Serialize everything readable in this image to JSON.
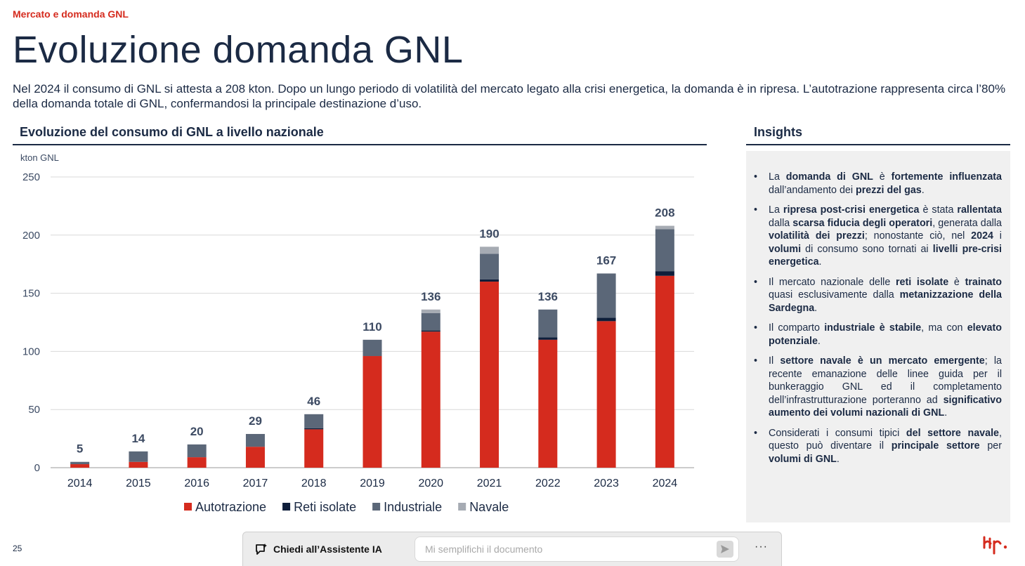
{
  "header": {
    "section_label": "Mercato e domanda GNL",
    "title": "Evoluzione domanda GNL",
    "intro": "Nel 2024 il consumo di GNL si attesta a 208 kton. Dopo un lungo periodo di volatilità del mercato legato alla crisi energetica, la domanda è in ripresa. L’autotrazione rappresenta circa l’80% della domanda totale di GNL, confermandosi la principale destinazione d’uso."
  },
  "chart_title": "Evoluzione del consumo di GNL a livello nazionale",
  "chart_data": {
    "type": "bar",
    "stacked": true,
    "ylabel": "kton GNL",
    "ylim": [
      0,
      250
    ],
    "yticks": [
      0,
      50,
      100,
      150,
      200,
      250
    ],
    "grid": true,
    "legend_position": "bottom",
    "categories": [
      "2014",
      "2015",
      "2016",
      "2017",
      "2018",
      "2019",
      "2020",
      "2021",
      "2022",
      "2023",
      "2024"
    ],
    "totals": [
      "5",
      "14",
      "20",
      "29",
      "46",
      "110",
      "136",
      "190",
      "136",
      "167",
      "208"
    ],
    "series": [
      {
        "name": "Autotrazione",
        "color": "#d52b1e",
        "values": [
          3,
          5,
          9,
          18,
          33,
          96,
          117,
          160,
          110,
          126,
          165
        ]
      },
      {
        "name": "Reti isolate",
        "color": "#0e1e3a",
        "values": [
          0,
          0,
          0,
          0,
          1,
          0,
          1,
          2,
          2,
          3,
          4
        ]
      },
      {
        "name": "Industriale",
        "color": "#5b6778",
        "values": [
          2,
          9,
          11,
          11,
          12,
          14,
          15,
          22,
          24,
          38,
          36
        ]
      },
      {
        "name": "Navale",
        "color": "#a6abb3",
        "values": [
          0,
          0,
          0,
          0,
          0,
          0,
          3,
          6,
          0,
          0,
          3
        ]
      }
    ]
  },
  "insights": {
    "title": "Insights",
    "items": [
      "La <b>domanda di GNL</b> è <b>fortemente influenzata</b> dall’andamento dei <b>prezzi del gas</b>.",
      "La <b>ripresa post-crisi energetica</b> è stata <b>rallentata</b> dalla <b>scarsa fiducia degli operatori</b>, generata dalla <b>volatilità dei prezzi</b>; nonostante ciò, nel <b>2024</b> i <b>volumi</b> di consumo sono tornati ai <b>livelli pre-crisi energetica</b>.",
      "Il mercato nazionale delle <b>reti isolate</b> è <b>trainato</b> quasi esclusivamente dalla <b>metanizzazione della Sardegna</b>.",
      "Il comparto <b>industriale è stabile</b>, ma con <b>elevato potenziale</b>.",
      "Il <b>settore navale è un mercato emergente</b>; la recente emanazione delle linee guida per il bunkeraggio GNL ed il completamento dell’infrastrutturazione porteranno ad <b>significativo aumento dei volumi nazionali di GNL</b>.",
      "Considerati i consumi tipici <b>del settore navale</b>, questo può diventare il <b>principale settore</b> per <b>volumi di GNL</b>."
    ]
  },
  "footer": {
    "page_number": "25",
    "assistant_label": "Chiedi all’Assistente IA",
    "assistant_placeholder": "Mi semplifichi il documento",
    "more_label": "···",
    "logo_text": "bip."
  },
  "icons": {
    "assistant": "chat-sparkle-icon",
    "send": "send-icon",
    "more": "more-icon"
  }
}
